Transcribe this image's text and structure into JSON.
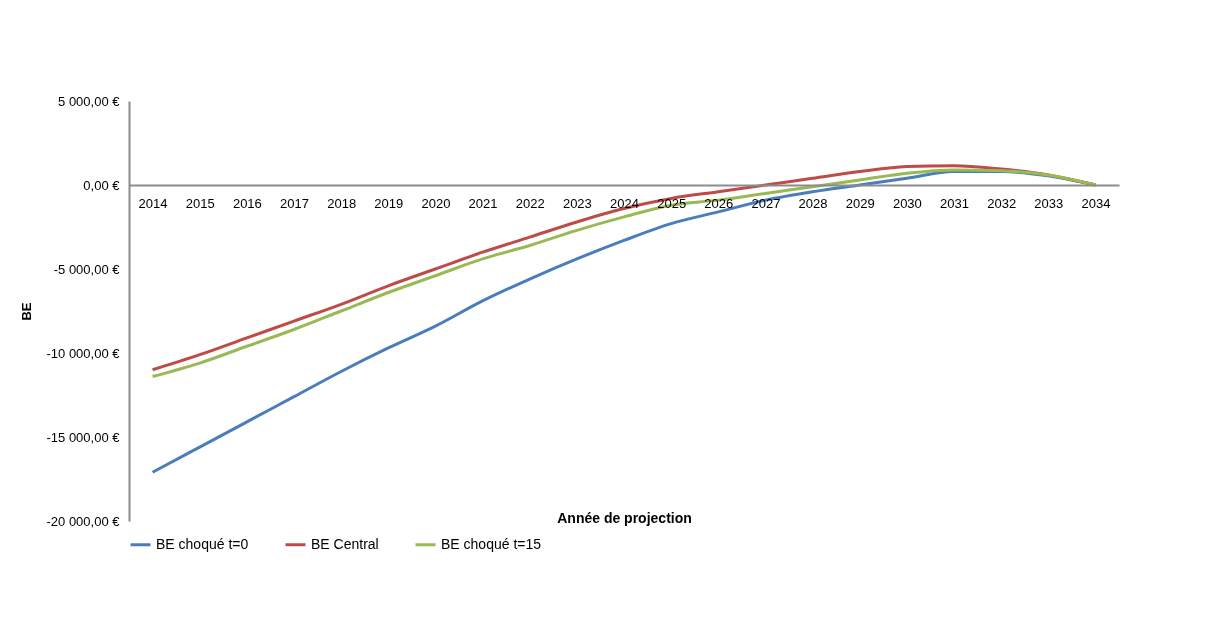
{
  "chart_data": {
    "type": "line",
    "xlabel": "Année de projection",
    "ylabel": "BE",
    "categories": [
      "2014",
      "2015",
      "2016",
      "2017",
      "2018",
      "2019",
      "2020",
      "2021",
      "2022",
      "2023",
      "2024",
      "2025",
      "2026",
      "2027",
      "2028",
      "2029",
      "2030",
      "2031",
      "2032",
      "2033",
      "2034"
    ],
    "series": [
      {
        "name": "BE choqué t=0",
        "color": "#4a7ebb",
        "values": [
          -17100,
          -15600,
          -14100,
          -12600,
          -11100,
          -9700,
          -8400,
          -6900,
          -5600,
          -4400,
          -3300,
          -2300,
          -1600,
          -900,
          -400,
          0,
          400,
          800,
          800,
          550,
          0
        ]
      },
      {
        "name": "BE Central",
        "color": "#be4b48",
        "values": [
          -11000,
          -10100,
          -9100,
          -8100,
          -7100,
          -6000,
          -5000,
          -4000,
          -3100,
          -2200,
          -1400,
          -800,
          -400,
          0,
          400,
          800,
          1100,
          1150,
          950,
          600,
          0
        ]
      },
      {
        "name": "BE choqué t=15",
        "color": "#98b954",
        "values": [
          -11400,
          -10600,
          -9600,
          -8600,
          -7500,
          -6400,
          -5400,
          -4400,
          -3600,
          -2700,
          -1900,
          -1200,
          -900,
          -500,
          -100,
          300,
          700,
          900,
          850,
          600,
          0
        ]
      }
    ],
    "ylim": [
      -20000,
      5000
    ],
    "yticks": [
      {
        "value": -20000,
        "label": "-20 000,00 €"
      },
      {
        "value": -15000,
        "label": "-15 000,00 €"
      },
      {
        "value": -10000,
        "label": "-10 000,00 €"
      },
      {
        "value": -5000,
        "label": "-5 000,00 €"
      },
      {
        "value": 0,
        "label": "0,00 €"
      },
      {
        "value": 5000,
        "label": "5 000,00 €"
      }
    ],
    "legend": "bottom",
    "line_style": "solid",
    "marker": "none"
  }
}
